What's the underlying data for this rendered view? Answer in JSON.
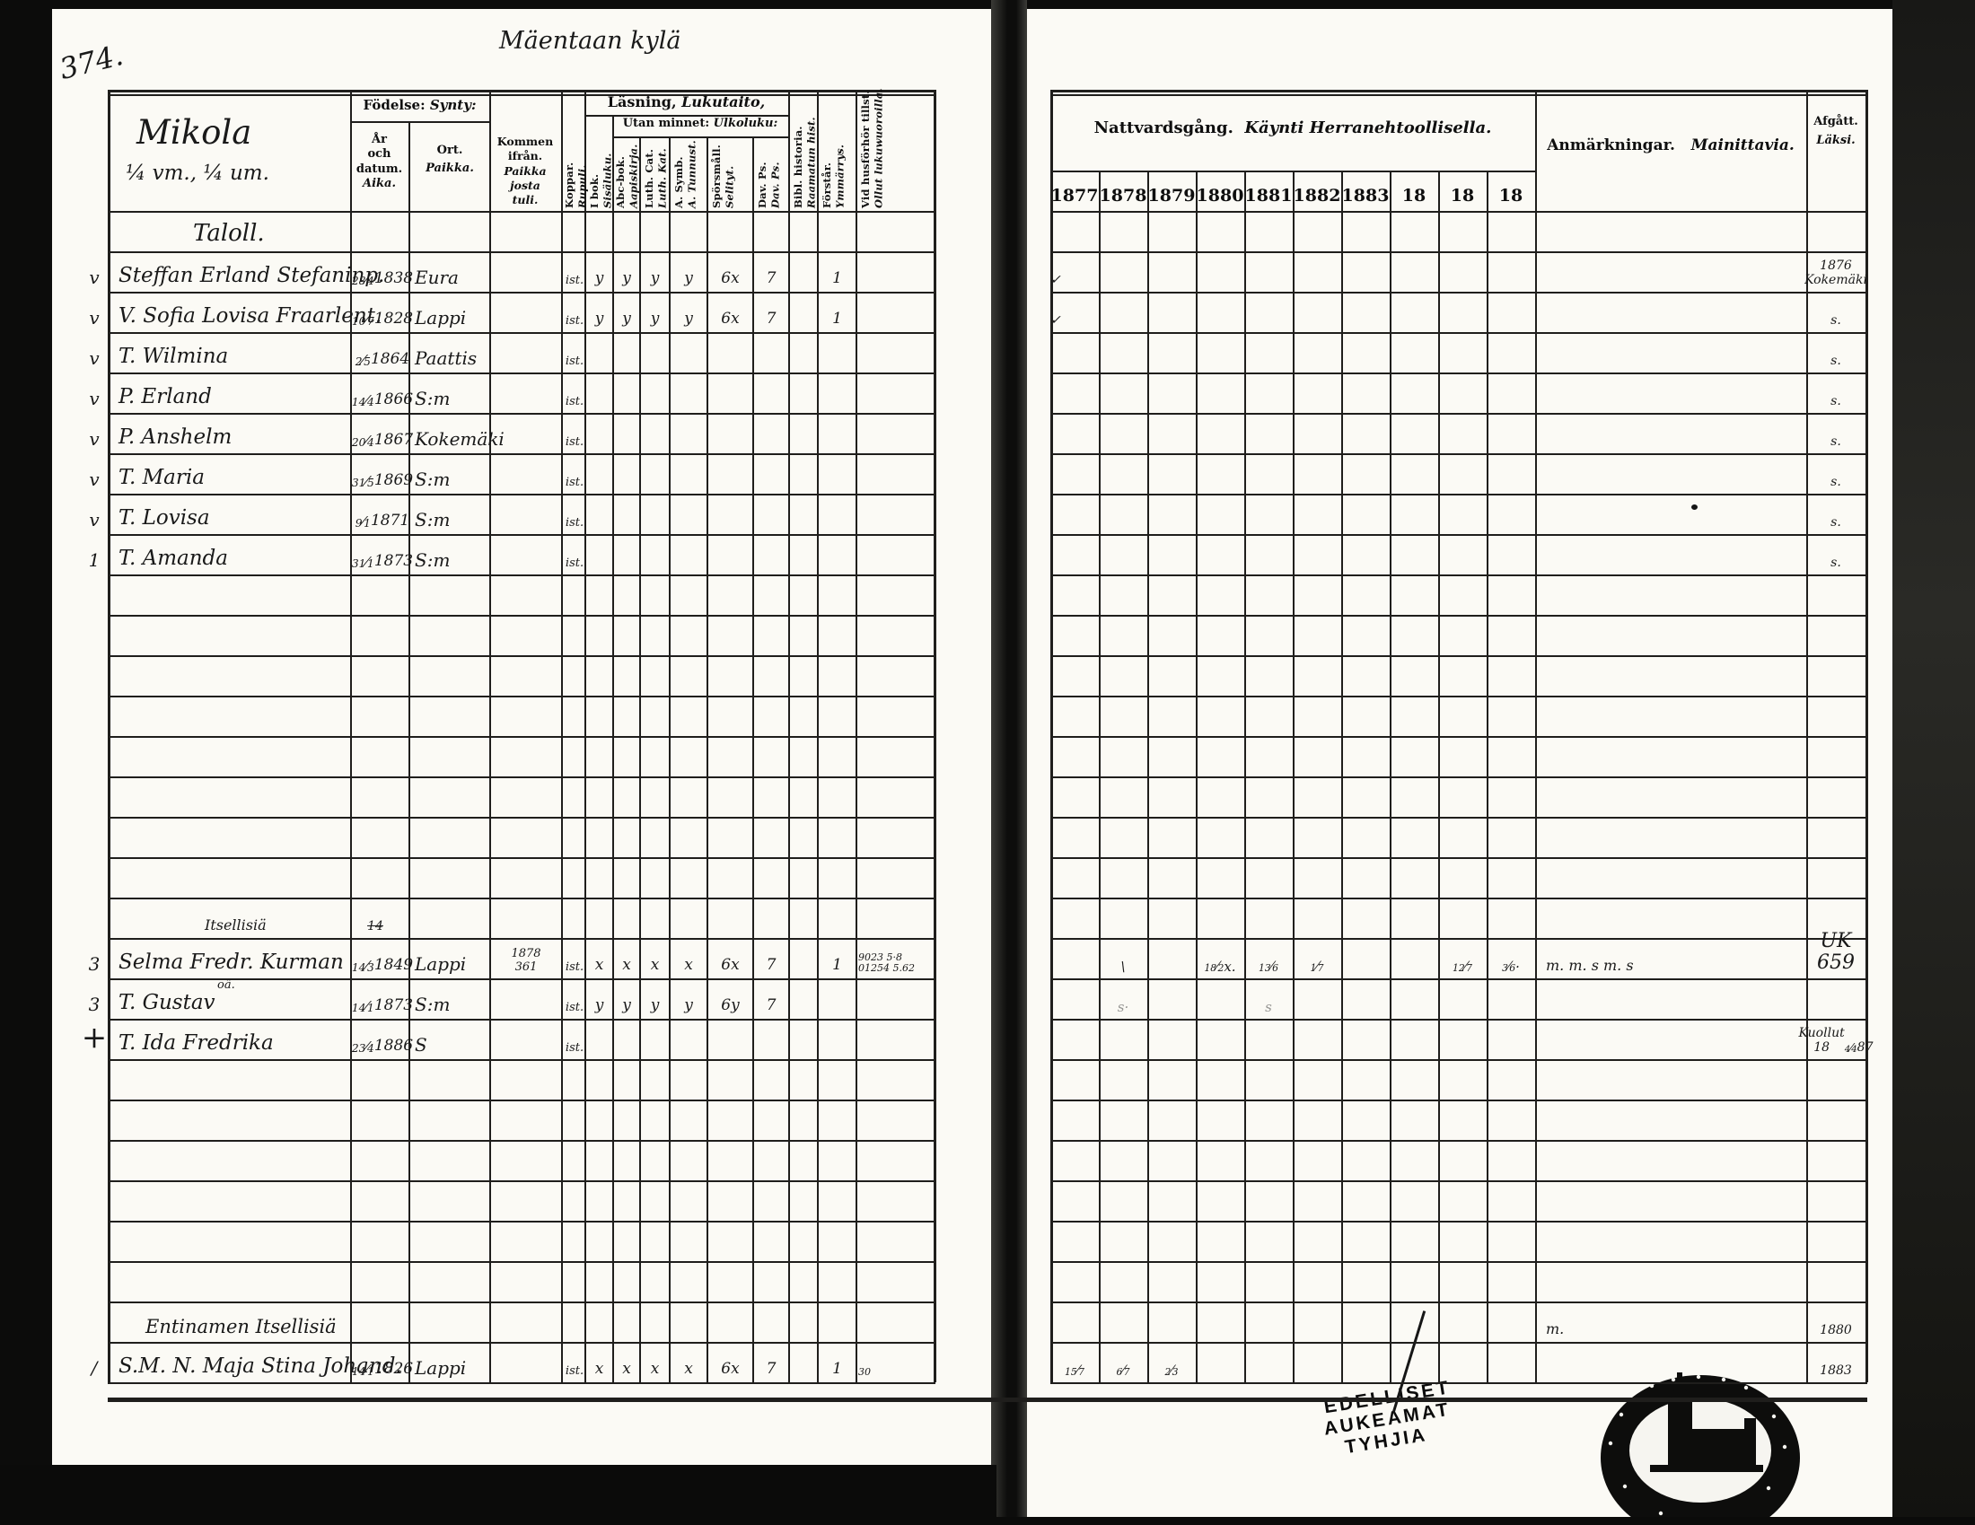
{
  "page": {
    "number": "374.",
    "village": "Mäentaan kylä",
    "farm": "Mikola",
    "farm_note": "¼ vm., ¼ um."
  },
  "left_header": {
    "birth": {
      "sv": "Födelse:",
      "fi": "Synty:"
    },
    "birth_date": {
      "l1": "År",
      "l2": "och datum.",
      "l3": "Aika."
    },
    "birth_place": {
      "l1": "Ort.",
      "l2": "Paikka."
    },
    "came_from": {
      "l1": "Kommen ifrån.",
      "l2": "Paikka josta",
      "l3": "tuli."
    },
    "reading": {
      "sv": "Läsning,",
      "fi": "Lukutaito,"
    },
    "by_memory": {
      "sv": "Utan minnet:",
      "fi": "Ulkoluku:"
    },
    "vaccination": {
      "sv": "Koppar.",
      "fi": "Rupuli."
    },
    "in_book": {
      "sv": "I bok.",
      "fi": "Sisäluku."
    },
    "memory_cols": [
      {
        "sv": "Abc-bok.",
        "fi": "Aapiskirja."
      },
      {
        "sv": "Luth. Cat.",
        "fi": "Luth. Kat."
      },
      {
        "sv": "A. Symb.",
        "fi": "A. Tunnust."
      },
      {
        "sv": "Spörsmåll.",
        "fi": "Selityt."
      },
      {
        "sv": "Dav. Ps.",
        "fi": "Dav. Ps."
      }
    ],
    "bible_history": {
      "sv": "Bibl. historia.",
      "fi": "Raamatun hist."
    },
    "understands": {
      "sv": "Förstår.",
      "fi": "Ymmärrys."
    },
    "attended": {
      "sv": "Vid husförhör tillst.",
      "fi": "Ollut lukuwuoroilla."
    }
  },
  "right_header": {
    "communion": {
      "sv": "Nattvardsgång.",
      "fi": "Käynti Herranehtoollisella."
    },
    "years": [
      "1877",
      "1878",
      "1879",
      "1880",
      "1881",
      "1882",
      "1883",
      "18",
      "18",
      "18"
    ],
    "remarks": {
      "sv": "Anmärkningar.",
      "fi": "Mainittavia."
    },
    "departed": {
      "sv": "Afgått.",
      "fi": "Läksi."
    }
  },
  "stamp": {
    "l1": "EDELLISET",
    "l2": "AUKEAMAT",
    "l3": "TYHJIA"
  },
  "rows": [
    {
      "label": "Taloll."
    },
    {
      "m": "v",
      "name": "Steffan Erland Stefaninp.",
      "born": "28/4 1838",
      "place": "Eura",
      "vacc": "ist.",
      "ibok": "y",
      "abc": "y",
      "luth": "y",
      "symb": "y",
      "spo": "6x",
      "dav": "7",
      "fors": "1",
      "years": {
        "0": "✓"
      },
      "dep": "1876\nKokemäki"
    },
    {
      "m": "v",
      "name": "V. Sofia Lovisa Fraarlent.",
      "born": "10/7 1828",
      "place": "Lappi",
      "vacc": "ist.",
      "ibok": "y",
      "abc": "y",
      "luth": "y",
      "symb": "y",
      "spo": "6x",
      "dav": "7",
      "fors": "1",
      "years": {
        "0": "✓"
      },
      "dep": "s."
    },
    {
      "m": "v",
      "name": "T. Wilmina",
      "born": "2/5 1864",
      "place": "Paattis",
      "vacc": "ist.",
      "dep": "s."
    },
    {
      "m": "v",
      "name": "P. Erland",
      "born": "14/4 1866",
      "place": "S:m",
      "vacc": "ist.",
      "dep": "s."
    },
    {
      "m": "v",
      "name": "P. Anshelm",
      "born": "20/4 1867",
      "place": "Kokemäki",
      "vacc": "ist.",
      "dep": "s."
    },
    {
      "m": "v",
      "name": "T. Maria",
      "born": "31/5 1869",
      "place": "S:m",
      "vacc": "ist.",
      "dep": "s."
    },
    {
      "m": "v",
      "name": "T. Lovisa",
      "born": "9/1 1871",
      "place": "S:m",
      "vacc": "ist.",
      "dep": "s."
    },
    {
      "m": "1",
      "name": "T. Amanda",
      "born": "31/1 1873",
      "place": "S:m",
      "vacc": "ist.",
      "dep": "s."
    },
    {},
    {},
    {},
    {},
    {},
    {},
    {},
    {},
    {
      "label": "Itsellisiä",
      "born_note": "14"
    },
    {
      "m": "3",
      "name": "Selma Fredr. Kurman",
      "born": "14/3 1849",
      "place": "Lappi",
      "from": "1878\n361",
      "vacc": "ist.",
      "ibok": "x",
      "abc": "x",
      "luth": "x",
      "symb": "x",
      "spo": "6x",
      "dav": "7",
      "fors": "1",
      "att": "9023 5·8\n01254 5.62",
      "years": {
        "1": "\\",
        "3": "18/2 x.",
        "4": "13/6",
        "5": "1/7",
        "8": "12/7",
        "9": "3/6·"
      },
      "rem": "m. m. s m. s",
      "dep": "UK\n659",
      "dep_big": true
    },
    {
      "m": "3",
      "name": "T. Gustav",
      "sup": "oä.",
      "born": "14/1 1873",
      "place": "S:m",
      "vacc": "ist.",
      "ibok": "y",
      "abc": "y",
      "luth": "y",
      "symb": "y",
      "spo": "6y",
      "dav": "7",
      "years": {
        "1": "s·",
        "4": "s"
      },
      "years_faint": true
    },
    {
      "m": "+",
      "name": "T. Ida Fredrika",
      "born": "23/4 1886",
      "place": "S",
      "vacc": "ist.",
      "dep": "Kuollut\n18 4/4 87"
    },
    {},
    {},
    {},
    {},
    {},
    {},
    {
      "label": "Entinamen Itsellisiä",
      "rem": "m.",
      "dep": "1880"
    },
    {
      "m": "/",
      "name": "S.M. N. Maja Stina Johand.",
      "born": "14/1 1826",
      "place": "Lappi",
      "vacc": "ist.",
      "ibok": "x",
      "abc": "x",
      "luth": "x",
      "symb": "x",
      "spo": "6x",
      "dav": "7",
      "fors": "1",
      "att": "30",
      "years": {
        "0": "15/7",
        "1": "6/7",
        "2": "2/3"
      },
      "dep": "1883"
    }
  ]
}
